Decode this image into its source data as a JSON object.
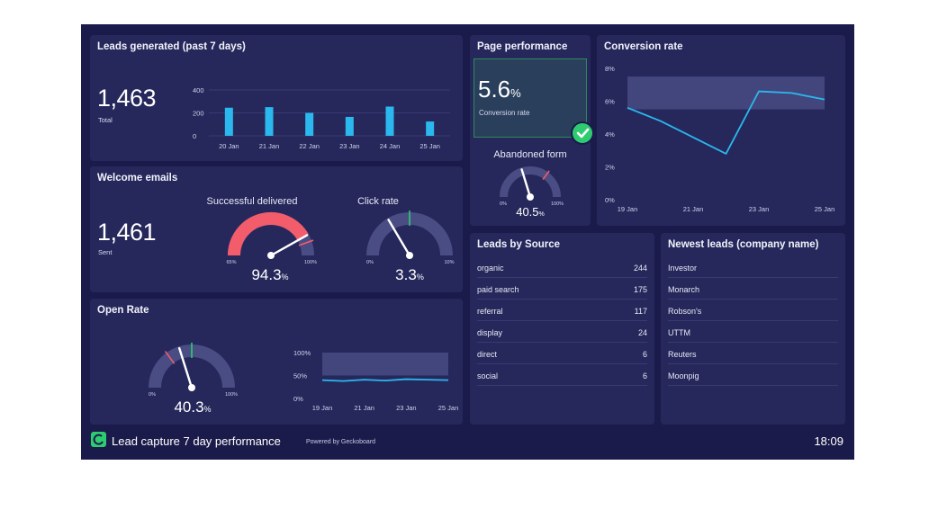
{
  "colors": {
    "background": "#1b1b4b",
    "widget": "#26285c",
    "accent": "#2bb8ee",
    "green": "#2ecc71",
    "red": "#f25c6b"
  },
  "leads": {
    "title": "Leads generated (past 7 days)",
    "total": "1,463",
    "total_label": "Total",
    "yticks": [
      "400",
      "200",
      "0"
    ]
  },
  "welcome": {
    "title": "Welcome emails",
    "sent": "1,461",
    "sent_label": "Sent",
    "delivered_label": "Successful delivered",
    "delivered_value": "94.3",
    "delivered_min": "65%",
    "delivered_max": "100%",
    "click_label": "Click rate",
    "click_value": "3.3",
    "click_min": "0%",
    "click_max": "10%"
  },
  "open_rate": {
    "title": "Open Rate",
    "value": "40.3",
    "min": "0%",
    "max": "100%",
    "yticks": [
      "100%",
      "50%",
      "0%"
    ],
    "xticks": [
      "19 Jan",
      "21 Jan",
      "23 Jan",
      "25 Jan"
    ]
  },
  "page_performance": {
    "title": "Page performance",
    "conversion_value": "5.6",
    "conversion_label": "Conversion rate",
    "abandoned_label": "Abandoned form",
    "abandoned_value": "40.5",
    "abandoned_min": "0%",
    "abandoned_max": "100%"
  },
  "conversion": {
    "title": "Conversion rate",
    "yticks": [
      "8%",
      "6%",
      "4%",
      "2%",
      "0%"
    ],
    "xticks": [
      "19 Jan",
      "21 Jan",
      "23 Jan",
      "25 Jan"
    ]
  },
  "sources": {
    "title": "Leads by Source",
    "rows": [
      {
        "name": "organic",
        "value": "244"
      },
      {
        "name": "paid search",
        "value": "175"
      },
      {
        "name": "referral",
        "value": "117"
      },
      {
        "name": "display",
        "value": "24"
      },
      {
        "name": "direct",
        "value": "6"
      },
      {
        "name": "social",
        "value": "6"
      }
    ]
  },
  "newest": {
    "title": "Newest leads (company name)",
    "rows": [
      "Investor",
      "Monarch",
      "Robson's",
      "UTTM",
      "Reuters",
      "Moonpig"
    ]
  },
  "footer": {
    "title": "Lead capture 7 day performance",
    "powered": "Powered by Geckoboard",
    "time": "18:09"
  },
  "chart_data": [
    {
      "type": "bar",
      "categories": [
        "20 Jan",
        "21 Jan",
        "22 Jan",
        "23 Jan",
        "24 Jan",
        "25 Jan"
      ],
      "values": [
        245,
        250,
        200,
        165,
        255,
        125
      ],
      "ylim": [
        0,
        400
      ]
    },
    {
      "type": "line",
      "x": [
        "19 Jan",
        "20 Jan",
        "21 Jan",
        "22 Jan",
        "23 Jan",
        "24 Jan",
        "25 Jan"
      ],
      "values": [
        5.6,
        4.8,
        3.8,
        2.8,
        6.6,
        6.5,
        6.1
      ],
      "ylim": [
        0,
        8
      ],
      "target_band": [
        5.5,
        7.5
      ]
    },
    {
      "type": "line",
      "x": [
        "19 Jan",
        "20 Jan",
        "21 Jan",
        "22 Jan",
        "23 Jan",
        "24 Jan",
        "25 Jan"
      ],
      "values": [
        40,
        38,
        41,
        39,
        42,
        41,
        40
      ],
      "ylim": [
        0,
        100
      ],
      "target_band": [
        50,
        100
      ]
    }
  ]
}
